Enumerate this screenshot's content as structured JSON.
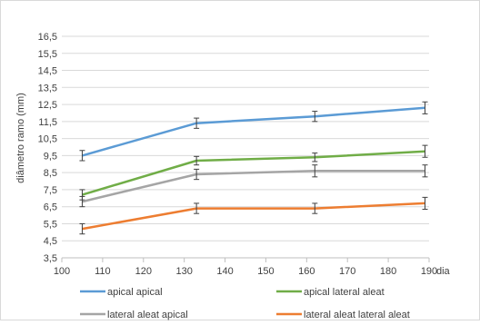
{
  "chart_data": {
    "type": "line",
    "xlabel": "dia",
    "ylabel": "diâmetro ramo (mm)",
    "xlim": [
      100,
      190
    ],
    "ylim": [
      3.5,
      16.5
    ],
    "xticks": [
      100,
      110,
      120,
      130,
      140,
      150,
      160,
      170,
      180,
      190
    ],
    "yticks": [
      "3,5",
      "4,5",
      "5,5",
      "6,5",
      "7,5",
      "8,5",
      "9,5",
      "10,5",
      "11,5",
      "12,5",
      "13,5",
      "14,5",
      "15,5",
      "16,5"
    ],
    "grid": "horizontal",
    "legend_position": "bottom",
    "x": [
      105,
      133,
      162,
      189
    ],
    "series": [
      {
        "name": "apical apical",
        "color": "#5B9BD5",
        "values": [
          9.5,
          11.4,
          11.8,
          12.3
        ],
        "errors": [
          0.3,
          0.3,
          0.3,
          0.35
        ]
      },
      {
        "name": "apical lateral aleat",
        "color": "#70AD47",
        "values": [
          7.2,
          9.2,
          9.4,
          9.75
        ],
        "errors": [
          0.3,
          0.25,
          0.25,
          0.35
        ]
      },
      {
        "name": "lateral aleat apical",
        "color": "#A5A5A5",
        "values": [
          6.8,
          8.4,
          8.6,
          8.6
        ],
        "errors": [
          0.3,
          0.3,
          0.35,
          0.35
        ]
      },
      {
        "name": "lateral aleat lateral aleat",
        "color": "#ED7D31",
        "values": [
          5.2,
          6.4,
          6.4,
          6.7
        ],
        "errors": [
          0.3,
          0.3,
          0.3,
          0.35
        ]
      }
    ]
  }
}
